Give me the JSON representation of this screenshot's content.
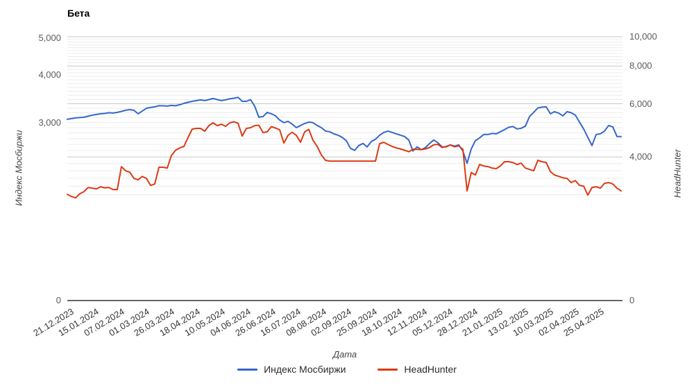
{
  "chart_data": {
    "type": "line",
    "title": "Бета",
    "xlabel": "Дата",
    "legend_position": "bottom",
    "grid": true,
    "x_tick_labels": [
      "21.12.2023",
      "15.01.2024",
      "07.02.2024",
      "01.03.2024",
      "26.03.2024",
      "18.04.2024",
      "10.05.2024",
      "04.06.2024",
      "26.06.2024",
      "16.07.2024",
      "08.08.2024",
      "02.09.2024",
      "25.09.2024",
      "18.10.2024",
      "12.11.2024",
      "05.12.2024",
      "28.12.2024",
      "21.01.2025",
      "13.02.2025",
      "10.03.2025",
      "02.04.2025",
      "25.04.2025"
    ],
    "axes": {
      "y_left": {
        "title": "Индекс Мосбиржи",
        "scale": "log",
        "ylim": [
          1028,
          5000
        ],
        "ticks": [
          "5,000",
          "4,000",
          "3,000",
          "0"
        ],
        "tick_values": [
          5000,
          4000,
          3000,
          null
        ]
      },
      "y_right": {
        "title": "HeadHunter",
        "scale": "log",
        "ylim": [
          1338,
          10000
        ],
        "ticks": [
          "10,000",
          "8,000",
          "6,000",
          "4,000",
          "0"
        ],
        "tick_values": [
          10000,
          8000,
          6000,
          4000,
          null
        ],
        "gridline_major_values": [
          10000,
          8000,
          6000,
          4000
        ],
        "gridline_minor_step": 200,
        "gridline_minor_min": 3000,
        "gridline_minor_max": 9800
      }
    },
    "colors": {
      "gridline_major": "#c8c8c8",
      "gridline_minor": "#ececec",
      "baseline": "#666666"
    },
    "series": [
      {
        "name": "Индекс Мосбиржи",
        "axis": "left",
        "color": "#3366cc",
        "values": [
          3066,
          3079,
          3092,
          3098,
          3104,
          3124,
          3144,
          3157,
          3170,
          3176,
          3190,
          3183,
          3196,
          3216,
          3237,
          3250,
          3237,
          3170,
          3223,
          3278,
          3291,
          3305,
          3326,
          3326,
          3319,
          3333,
          3326,
          3347,
          3375,
          3396,
          3417,
          3432,
          3446,
          3432,
          3453,
          3475,
          3453,
          3432,
          3446,
          3468,
          3482,
          3500,
          3417,
          3417,
          3453,
          3319,
          3104,
          3117,
          3196,
          3170,
          3130,
          3053,
          3003,
          3028,
          2978,
          2916,
          2953,
          2990,
          3015,
          3003,
          2953,
          2916,
          2856,
          2844,
          2809,
          2786,
          2751,
          2695,
          2574,
          2543,
          2617,
          2650,
          2596,
          2683,
          2717,
          2786,
          2833,
          2856,
          2833,
          2809,
          2786,
          2763,
          2706,
          2532,
          2596,
          2553,
          2585,
          2650,
          2706,
          2661,
          2596,
          2596,
          2628,
          2607,
          2628,
          2532,
          2350,
          2564,
          2695,
          2740,
          2797,
          2797,
          2815,
          2809,
          2844,
          2880,
          2922,
          2935,
          2892,
          2904,
          2941,
          3117,
          3196,
          3284,
          3298,
          3305,
          3170,
          3210,
          3183,
          3130,
          3210,
          3190,
          3144,
          3015,
          2892,
          2751,
          2617,
          2797,
          2809,
          2856,
          2953,
          2929,
          2763,
          2763
        ]
      },
      {
        "name": "HeadHunter",
        "axis": "right",
        "color": "#dc3912",
        "values": [
          3006,
          2958,
          2927,
          3022,
          3070,
          3169,
          3152,
          3136,
          3186,
          3161,
          3169,
          3119,
          3119,
          3715,
          3599,
          3561,
          3395,
          3359,
          3449,
          3395,
          3220,
          3254,
          3696,
          3696,
          3676,
          4044,
          4208,
          4286,
          4332,
          4641,
          4945,
          4972,
          4972,
          4867,
          5079,
          5187,
          5079,
          5133,
          5052,
          5187,
          5229,
          5174,
          4690,
          4972,
          4998,
          5079,
          5092,
          4816,
          4842,
          5038,
          4985,
          4919,
          4448,
          4715,
          4829,
          4715,
          4472,
          4842,
          4932,
          4543,
          4332,
          4065,
          3897,
          3876,
          3876,
          3876,
          3876,
          3876,
          3876,
          3876,
          3876,
          3876,
          3876,
          3876,
          3876,
          4425,
          4472,
          4401,
          4332,
          4286,
          4253,
          4208,
          4163,
          4241,
          4241,
          4230,
          4253,
          4298,
          4390,
          4401,
          4298,
          4332,
          4378,
          4321,
          4355,
          4241,
          3086,
          3552,
          3486,
          3775,
          3735,
          3715,
          3676,
          3657,
          3735,
          3856,
          3856,
          3835,
          3775,
          3815,
          3676,
          3637,
          3599,
          3897,
          3856,
          3835,
          3580,
          3486,
          3449,
          3413,
          3395,
          3289,
          3341,
          3220,
          3203,
          2990,
          3169,
          3186,
          3152,
          3271,
          3289,
          3254,
          3152,
          3086
        ]
      }
    ]
  }
}
